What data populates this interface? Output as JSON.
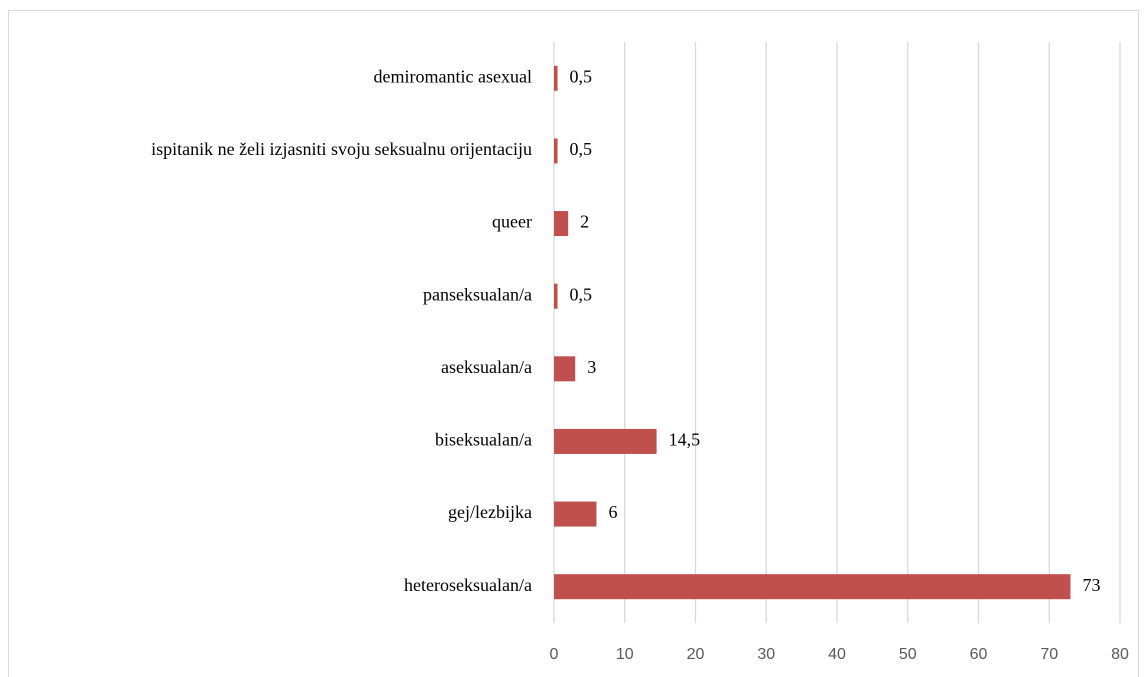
{
  "chart_data": {
    "type": "barh",
    "categories": [
      "demiromantic asexual",
      "ispitanik ne želi izjasniti svoju seksualnu orijentaciju",
      "queer",
      "panseksualan/a",
      "aseksualan/a",
      "biseksualan/a",
      "gej/lezbijka",
      "heteroseksualan/a"
    ],
    "values": [
      0.5,
      0.5,
      2,
      0.5,
      3,
      14.5,
      6,
      73
    ],
    "value_labels": [
      "0,5",
      "0,5",
      "2",
      "0,5",
      "3",
      "14,5",
      "6",
      "73"
    ],
    "color": "#c0504d",
    "xlim": [
      0,
      80
    ],
    "xticks": [
      0,
      10,
      20,
      30,
      40,
      50,
      60,
      70,
      80
    ],
    "grid": true
  }
}
